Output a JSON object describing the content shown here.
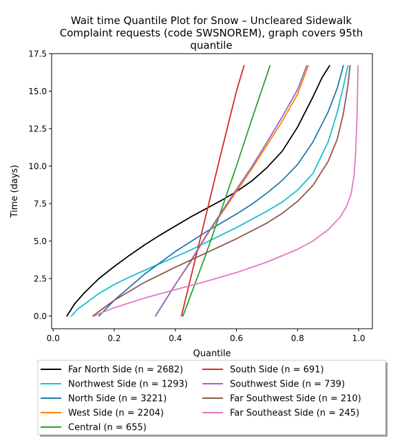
{
  "chart_data": {
    "type": "line",
    "title": "Wait time Quantile Plot for Snow – Uncleared Sidewalk Complaint  requests (code SWSNOREM), graph covers 95th quantile",
    "title_lines": [
      "Wait time Quantile Plot for Snow – Uncleared Sidewalk",
      "Complaint  requests (code SWSNOREM), graph covers 95th",
      "quantile"
    ],
    "xlabel": "Quantile",
    "ylabel": "Time (days)",
    "xlim": [
      -0.005,
      1.045
    ],
    "ylim": [
      -0.85,
      17.5
    ],
    "xticks": [
      0.0,
      0.2,
      0.4,
      0.6,
      0.8,
      1.0
    ],
    "xtick_labels": [
      "0.0",
      "0.2",
      "0.4",
      "0.6",
      "0.8",
      "1.0"
    ],
    "yticks": [
      0.0,
      2.5,
      5.0,
      7.5,
      10.0,
      12.5,
      15.0,
      17.5
    ],
    "ytick_labels": [
      "0.0",
      "2.5",
      "5.0",
      "7.5",
      "10.0",
      "12.5",
      "15.0",
      "17.5"
    ],
    "grid": false,
    "legend_position": "below plot, two columns",
    "series": [
      {
        "name": "Far North Side (n = 2682)",
        "color": "#000000",
        "x": [
          0.045,
          0.07,
          0.1,
          0.15,
          0.2,
          0.25,
          0.3,
          0.35,
          0.4,
          0.45,
          0.5,
          0.55,
          0.6,
          0.65,
          0.7,
          0.75,
          0.8,
          0.85,
          0.88,
          0.905
        ],
        "y": [
          0.0,
          0.8,
          1.5,
          2.5,
          3.3,
          4.05,
          4.75,
          5.4,
          6.0,
          6.6,
          7.15,
          7.7,
          8.3,
          9.0,
          9.9,
          11.0,
          12.6,
          14.6,
          15.9,
          16.7
        ]
      },
      {
        "name": "Northwest Side (n = 1293)",
        "color": "#17becf",
        "x": [
          0.06,
          0.08,
          0.1,
          0.15,
          0.2,
          0.25,
          0.3,
          0.35,
          0.4,
          0.45,
          0.5,
          0.55,
          0.6,
          0.65,
          0.7,
          0.75,
          0.8,
          0.85,
          0.9,
          0.93,
          0.95,
          0.965
        ],
        "y": [
          0.0,
          0.45,
          0.75,
          1.5,
          2.1,
          2.6,
          3.05,
          3.5,
          3.95,
          4.4,
          4.9,
          5.4,
          5.9,
          6.45,
          7.0,
          7.6,
          8.4,
          9.5,
          11.6,
          13.6,
          15.3,
          16.7
        ]
      },
      {
        "name": "North Side (n = 3221)",
        "color": "#1f77b4",
        "x": [
          0.15,
          0.2,
          0.3,
          0.4,
          0.5,
          0.6,
          0.65,
          0.7,
          0.75,
          0.8,
          0.85,
          0.9,
          0.93,
          0.95
        ],
        "y": [
          0.0,
          1.05,
          2.8,
          4.3,
          5.6,
          6.8,
          7.45,
          8.2,
          9.05,
          10.1,
          11.6,
          13.6,
          15.2,
          16.7
        ]
      },
      {
        "name": "West Side (n = 2204)",
        "color": "#ff7f0e",
        "x": [
          0.335,
          0.4,
          0.45,
          0.5,
          0.55,
          0.6,
          0.65,
          0.7,
          0.75,
          0.8,
          0.835
        ],
        "y": [
          0.0,
          2.1,
          3.6,
          5.3,
          6.8,
          8.3,
          9.8,
          11.4,
          13.0,
          14.8,
          16.7
        ]
      },
      {
        "name": "Central (n = 655)",
        "color": "#2ca02c",
        "x": [
          0.425,
          0.5,
          0.6,
          0.65,
          0.71
        ],
        "y": [
          0.0,
          4.1,
          10.0,
          13.1,
          16.7
        ]
      },
      {
        "name": "South Side (n = 691)",
        "color": "#d62728",
        "x": [
          0.42,
          0.5,
          0.55,
          0.6,
          0.625
        ],
        "y": [
          0.0,
          6.7,
          10.9,
          15.0,
          16.7
        ]
      },
      {
        "name": "Southwest Side (n = 739)",
        "color": "#9467bd",
        "x": [
          0.335,
          0.4,
          0.45,
          0.5,
          0.55,
          0.6,
          0.65,
          0.7,
          0.75,
          0.8,
          0.83
        ],
        "y": [
          0.0,
          2.1,
          3.65,
          5.35,
          6.9,
          8.45,
          9.95,
          11.6,
          13.3,
          15.1,
          16.7
        ]
      },
      {
        "name": "Far Southwest Side (n = 210)",
        "color": "#8c564b",
        "x": [
          0.13,
          0.15,
          0.2,
          0.3,
          0.4,
          0.5,
          0.6,
          0.7,
          0.75,
          0.8,
          0.85,
          0.9,
          0.93,
          0.95,
          0.965,
          0.972
        ],
        "y": [
          0.0,
          0.3,
          1.05,
          2.25,
          3.25,
          4.2,
          5.15,
          6.2,
          6.85,
          7.65,
          8.7,
          10.3,
          11.8,
          13.5,
          15.4,
          16.7
        ]
      },
      {
        "name": "Far Southeast Side (n = 245)",
        "color": "#e377c2",
        "x": [
          0.135,
          0.15,
          0.2,
          0.3,
          0.4,
          0.5,
          0.6,
          0.7,
          0.8,
          0.85,
          0.9,
          0.94,
          0.96,
          0.975,
          0.985,
          0.99,
          0.995,
          0.998
        ],
        "y": [
          0.0,
          0.15,
          0.55,
          1.2,
          1.75,
          2.3,
          2.9,
          3.6,
          4.45,
          5.0,
          5.75,
          6.6,
          7.3,
          8.1,
          9.4,
          10.8,
          13.5,
          16.7
        ]
      }
    ]
  }
}
